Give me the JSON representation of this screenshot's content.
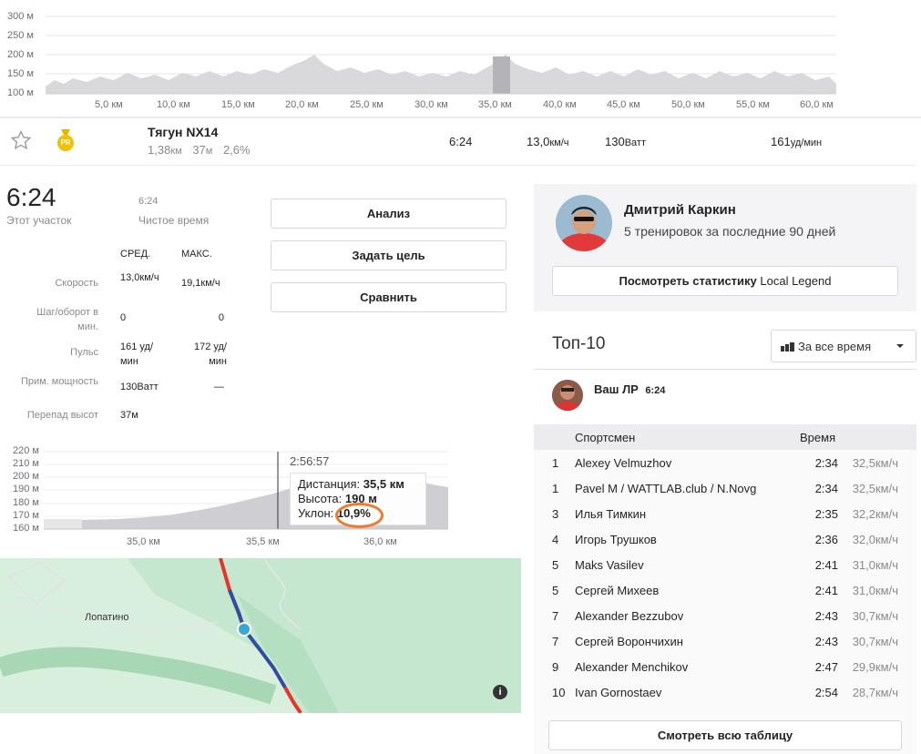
{
  "elevation_chart": {
    "y_ticks": [
      "300 м",
      "250 м",
      "200 м",
      "150 м",
      "100 м"
    ],
    "x_ticks": [
      "5,0 км",
      "10,0 км",
      "15,0 км",
      "20,0 км",
      "25,0 км",
      "30,0 км",
      "35,0 км",
      "40,0 км",
      "45,0 км",
      "50,0 км",
      "55,0 км",
      "60,0 км"
    ]
  },
  "segment": {
    "name": "Тягун NX14",
    "distance": "1,38",
    "distance_unit": "км",
    "elev": "37",
    "elev_unit": "м",
    "grade": "2,6%",
    "time": "6:24",
    "speed": "13,0",
    "speed_unit": "км/ч",
    "power": "130",
    "power_unit": "Ватт",
    "hr": "161",
    "hr_unit": "уд/мин",
    "pr_badge": "PR"
  },
  "effort": {
    "time": "6:24",
    "time_label": "Этот участок",
    "moving_time": "6:24",
    "moving_label": "Чистое время",
    "col_avg": "СРЕД.",
    "col_max": "МАКС.",
    "rows": [
      {
        "label": "Скорость",
        "avg": "13,0км/ч",
        "max": "19,1км/ч"
      },
      {
        "label": "Шаг/оборот в мин.",
        "avg": "0",
        "max": "0"
      },
      {
        "label": "Пульс",
        "avg": "161 уд/мин",
        "max": "172 уд/мин"
      },
      {
        "label": "Прим. мощность",
        "avg": "130Ватт",
        "max": "—"
      },
      {
        "label": "Перепад высот",
        "avg": "37м",
        "max": ""
      }
    ]
  },
  "buttons": {
    "analysis": "Анализ",
    "set_goal": "Задать цель",
    "compare": "Сравнить"
  },
  "mini_chart": {
    "y_ticks": [
      "220 м",
      "210 м",
      "200 м",
      "190 м",
      "180 м",
      "170 м",
      "160 м"
    ],
    "x_ticks": [
      "35,0 км",
      "35,5 км",
      "36,0 км"
    ],
    "cursor_time": "2:56:57",
    "tooltip": {
      "dist_label": "Дистанция:",
      "dist_value": "35,5 км",
      "alt_label": "Высота:",
      "alt_value": "190 м",
      "grade_label": "Уклон:",
      "grade_value": "10,9%"
    }
  },
  "map": {
    "place": "Лопатино",
    "info_icon": "i"
  },
  "legend": {
    "name": "Дмитрий Каркин",
    "subtitle": "5 тренировок за последние 90 дней",
    "button_prefix": "Посмотреть статистику ",
    "button_suffix": "Local Legend"
  },
  "top10": {
    "title": "Топ-10",
    "filter": "За все время",
    "pr_label": "Ваш ЛР",
    "pr_time": "6:24",
    "col_athlete": "Спортсмен",
    "col_time": "Время",
    "rows": [
      {
        "rank": "1",
        "name": "Alexey Velmuzhov",
        "time": "2:34",
        "speed": "32,5км/ч"
      },
      {
        "rank": "1",
        "name": "Pavel M / WATTLAB.club / N.Novg",
        "time": "2:34",
        "speed": "32,5км/ч"
      },
      {
        "rank": "3",
        "name": "Илья Тимкин",
        "time": "2:35",
        "speed": "32,2км/ч"
      },
      {
        "rank": "4",
        "name": "Игорь Трушков",
        "time": "2:36",
        "speed": "32,0км/ч"
      },
      {
        "rank": "5",
        "name": "Maks Vasilev",
        "time": "2:41",
        "speed": "31,0км/ч"
      },
      {
        "rank": "5",
        "name": "Сергей Михеев",
        "time": "2:41",
        "speed": "31,0км/ч"
      },
      {
        "rank": "7",
        "name": "Alexander Bezzubov",
        "time": "2:43",
        "speed": "30,7км/ч"
      },
      {
        "rank": "7",
        "name": "Сергей Ворончихин",
        "time": "2:43",
        "speed": "30,7км/ч"
      },
      {
        "rank": "9",
        "name": "Alexander Menchikov",
        "time": "2:47",
        "speed": "29,9км/ч"
      },
      {
        "rank": "10",
        "name": "Ivan Gornostaev",
        "time": "2:54",
        "speed": "28,7км/ч"
      }
    ],
    "view_all": "Смотреть всю таблицу"
  }
}
